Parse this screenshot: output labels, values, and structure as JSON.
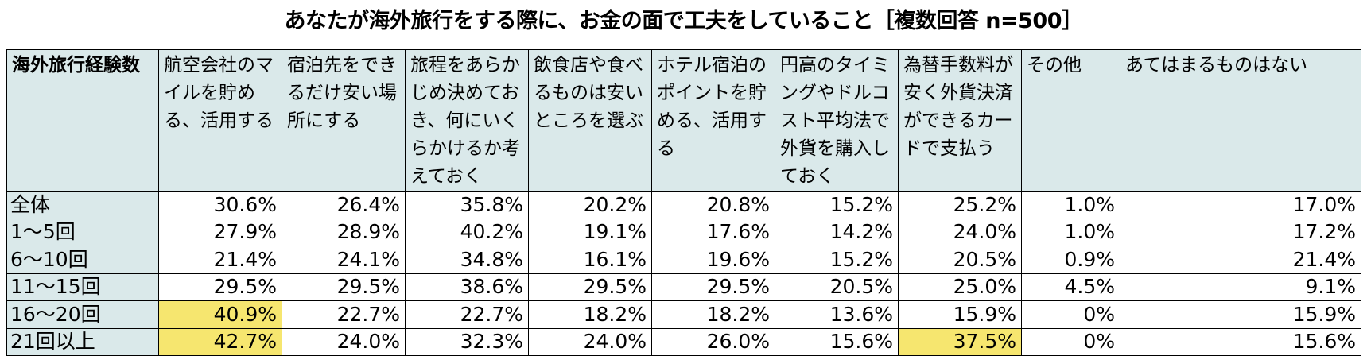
{
  "title": "あなたが海外旅行をする際に、お金の面で工夫をしていること［複数回答 n=500］",
  "colors": {
    "header_bg": "#dae9ea",
    "highlight": "#f6e66f",
    "border": "#000000"
  },
  "chart_data": {
    "type": "table",
    "title": "あなたが海外旅行をする際に、お金の面で工夫をしていること［複数回答 n=500］",
    "corner_label": "海外旅行経験数",
    "columns": [
      "航空会社のマイルを貯める、活用する",
      "宿泊先をできるだけ安い場所にする",
      "旅程をあらかじめ決めておき、何にいくらかけるか考えておく",
      "飲食店や食べるものは安いところを選ぶ",
      "ホテル宿泊のポイントを貯める、活用する",
      "円高のタイミングやドルコスト平均法で外貨を購入しておく",
      "為替手数料が安く外貨決済ができるカードで支払う",
      "その他",
      "あてはまるものはない"
    ],
    "rows": [
      {
        "label": "全体",
        "values": [
          "30.6%",
          "26.4%",
          "35.8%",
          "20.2%",
          "20.8%",
          "15.2%",
          "25.2%",
          "1.0%",
          "17.0%"
        ],
        "highlight": [
          false,
          false,
          false,
          false,
          false,
          false,
          false,
          false,
          false
        ]
      },
      {
        "label": "1～5回",
        "values": [
          "27.9%",
          "28.9%",
          "40.2%",
          "19.1%",
          "17.6%",
          "14.2%",
          "24.0%",
          "1.0%",
          "17.2%"
        ],
        "highlight": [
          false,
          false,
          false,
          false,
          false,
          false,
          false,
          false,
          false
        ]
      },
      {
        "label": "6～10回",
        "values": [
          "21.4%",
          "24.1%",
          "34.8%",
          "16.1%",
          "19.6%",
          "15.2%",
          "20.5%",
          "0.9%",
          "21.4%"
        ],
        "highlight": [
          false,
          false,
          false,
          false,
          false,
          false,
          false,
          false,
          false
        ]
      },
      {
        "label": "11～15回",
        "values": [
          "29.5%",
          "29.5%",
          "38.6%",
          "29.5%",
          "29.5%",
          "20.5%",
          "25.0%",
          "4.5%",
          "9.1%"
        ],
        "highlight": [
          false,
          false,
          false,
          false,
          false,
          false,
          false,
          false,
          false
        ]
      },
      {
        "label": "16～20回",
        "values": [
          "40.9%",
          "22.7%",
          "22.7%",
          "18.2%",
          "18.2%",
          "13.6%",
          "15.9%",
          "0%",
          "15.9%"
        ],
        "highlight": [
          true,
          false,
          false,
          false,
          false,
          false,
          false,
          false,
          false
        ]
      },
      {
        "label": "21回以上",
        "values": [
          "42.7%",
          "24.0%",
          "32.3%",
          "24.0%",
          "26.0%",
          "15.6%",
          "37.5%",
          "0%",
          "15.6%"
        ],
        "highlight": [
          true,
          false,
          false,
          false,
          false,
          false,
          true,
          false,
          false
        ]
      }
    ]
  }
}
